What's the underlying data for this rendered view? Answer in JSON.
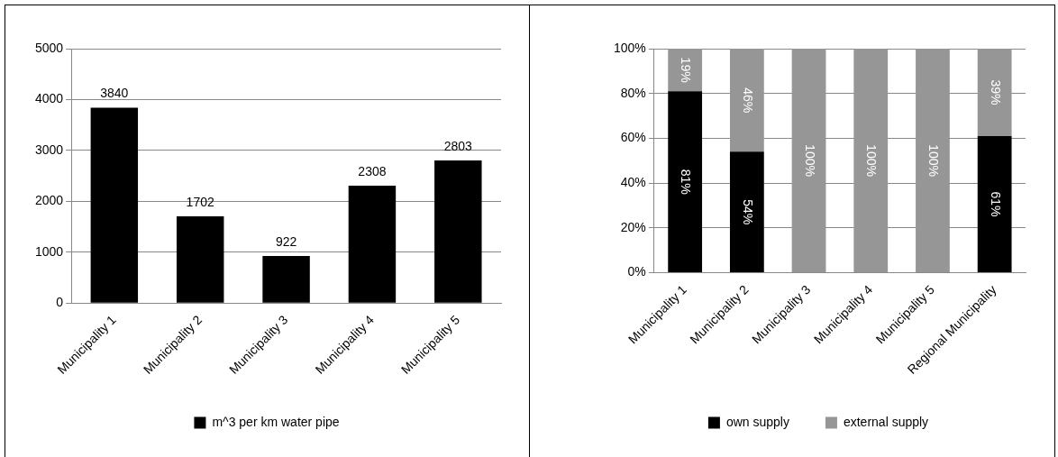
{
  "chart_data": [
    {
      "type": "bar",
      "categories": [
        "Municipality 1",
        "Municipality 2",
        "Municipality 3",
        "Municipality 4",
        "Municipality 5"
      ],
      "series": [
        {
          "name": "m^3 per km water pipe",
          "color": "#000000",
          "values": [
            3840,
            1702,
            922,
            2308,
            2803
          ]
        }
      ],
      "data_labels": true,
      "ylim": [
        0,
        5000
      ],
      "yticks": [
        0,
        1000,
        2000,
        3000,
        4000,
        5000
      ],
      "grid": "y",
      "legend": "bottom"
    },
    {
      "type": "bar",
      "stacked": true,
      "categories": [
        "Municipality 1",
        "Municipality 2",
        "Municipality 3",
        "Municipality 4",
        "Municipality 5",
        "Regional Municipality"
      ],
      "series": [
        {
          "name": "own supply",
          "color": "#000000",
          "values": [
            81,
            54,
            0,
            0,
            0,
            61
          ],
          "value_labels": [
            "81%",
            "54%",
            null,
            null,
            null,
            "61%"
          ]
        },
        {
          "name": "external supply",
          "color": "#969696",
          "values": [
            19,
            46,
            100,
            100,
            100,
            39
          ],
          "value_labels": [
            "19%",
            "46%",
            "100%",
            "100%",
            "100%",
            "39%"
          ]
        }
      ],
      "ylim": [
        0,
        100
      ],
      "yticks": [
        {
          "value": 0,
          "label": "0%"
        },
        {
          "value": 20,
          "label": "20%"
        },
        {
          "value": 40,
          "label": "40%"
        },
        {
          "value": 60,
          "label": "60%"
        },
        {
          "value": 80,
          "label": "80%"
        },
        {
          "value": 100,
          "label": "100%"
        }
      ],
      "grid": "y",
      "legend": "bottom"
    }
  ]
}
